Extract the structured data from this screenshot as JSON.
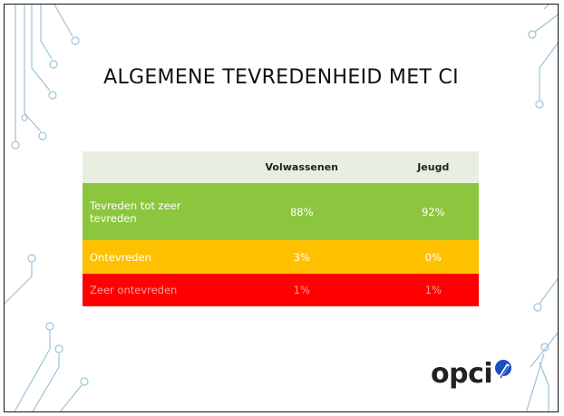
{
  "title": "ALGEMENE TEVREDENHEID MET CI",
  "table": {
    "columns": [
      "Volwassenen",
      "Jeugd"
    ],
    "rows": [
      {
        "label": "Tevreden tot zeer tevreden",
        "values": [
          "88%",
          "92%"
        ]
      },
      {
        "label": "Ontevreden",
        "values": [
          "3%",
          "0%"
        ]
      },
      {
        "label": "Zeer ontevreden",
        "values": [
          "1%",
          "1%"
        ]
      }
    ]
  },
  "logo": "opci"
}
